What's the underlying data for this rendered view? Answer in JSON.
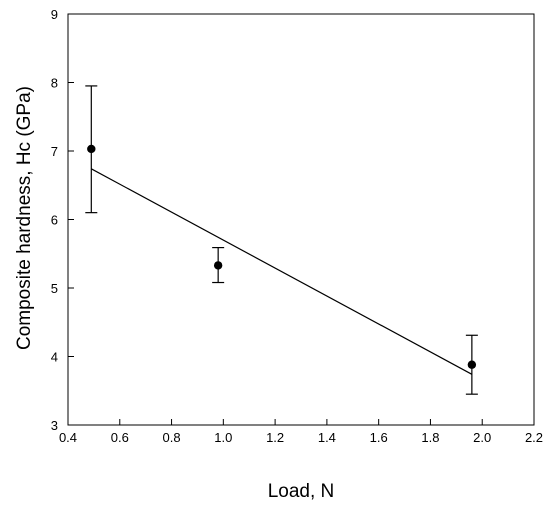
{
  "chart_data": {
    "type": "scatter",
    "title": "",
    "xlabel": "Load, N",
    "ylabel": "Composite hardness, Hc (GPa)",
    "xlim": [
      0.4,
      2.2
    ],
    "ylim": [
      3,
      9
    ],
    "x_ticks": [
      "0.4",
      "0.6",
      "0.8",
      "1.0",
      "1.2",
      "1.4",
      "1.6",
      "1.8",
      "2.0",
      "2.2"
    ],
    "y_ticks": [
      "3",
      "4",
      "5",
      "6",
      "7",
      "8",
      "9"
    ],
    "grid": false,
    "legend": "none",
    "series": [
      {
        "x": [
          0.49,
          0.98,
          1.96
        ],
        "y": [
          7.03,
          5.33,
          3.88
        ],
        "error_low": [
          6.1,
          5.08,
          3.45
        ],
        "error_high": [
          7.95,
          5.59,
          4.31
        ]
      }
    ],
    "fit_line": {
      "x": [
        0.49,
        1.96
      ],
      "y": [
        6.74,
        3.74
      ]
    },
    "colors": {
      "marker": "#000000",
      "line": "#000000"
    }
  }
}
